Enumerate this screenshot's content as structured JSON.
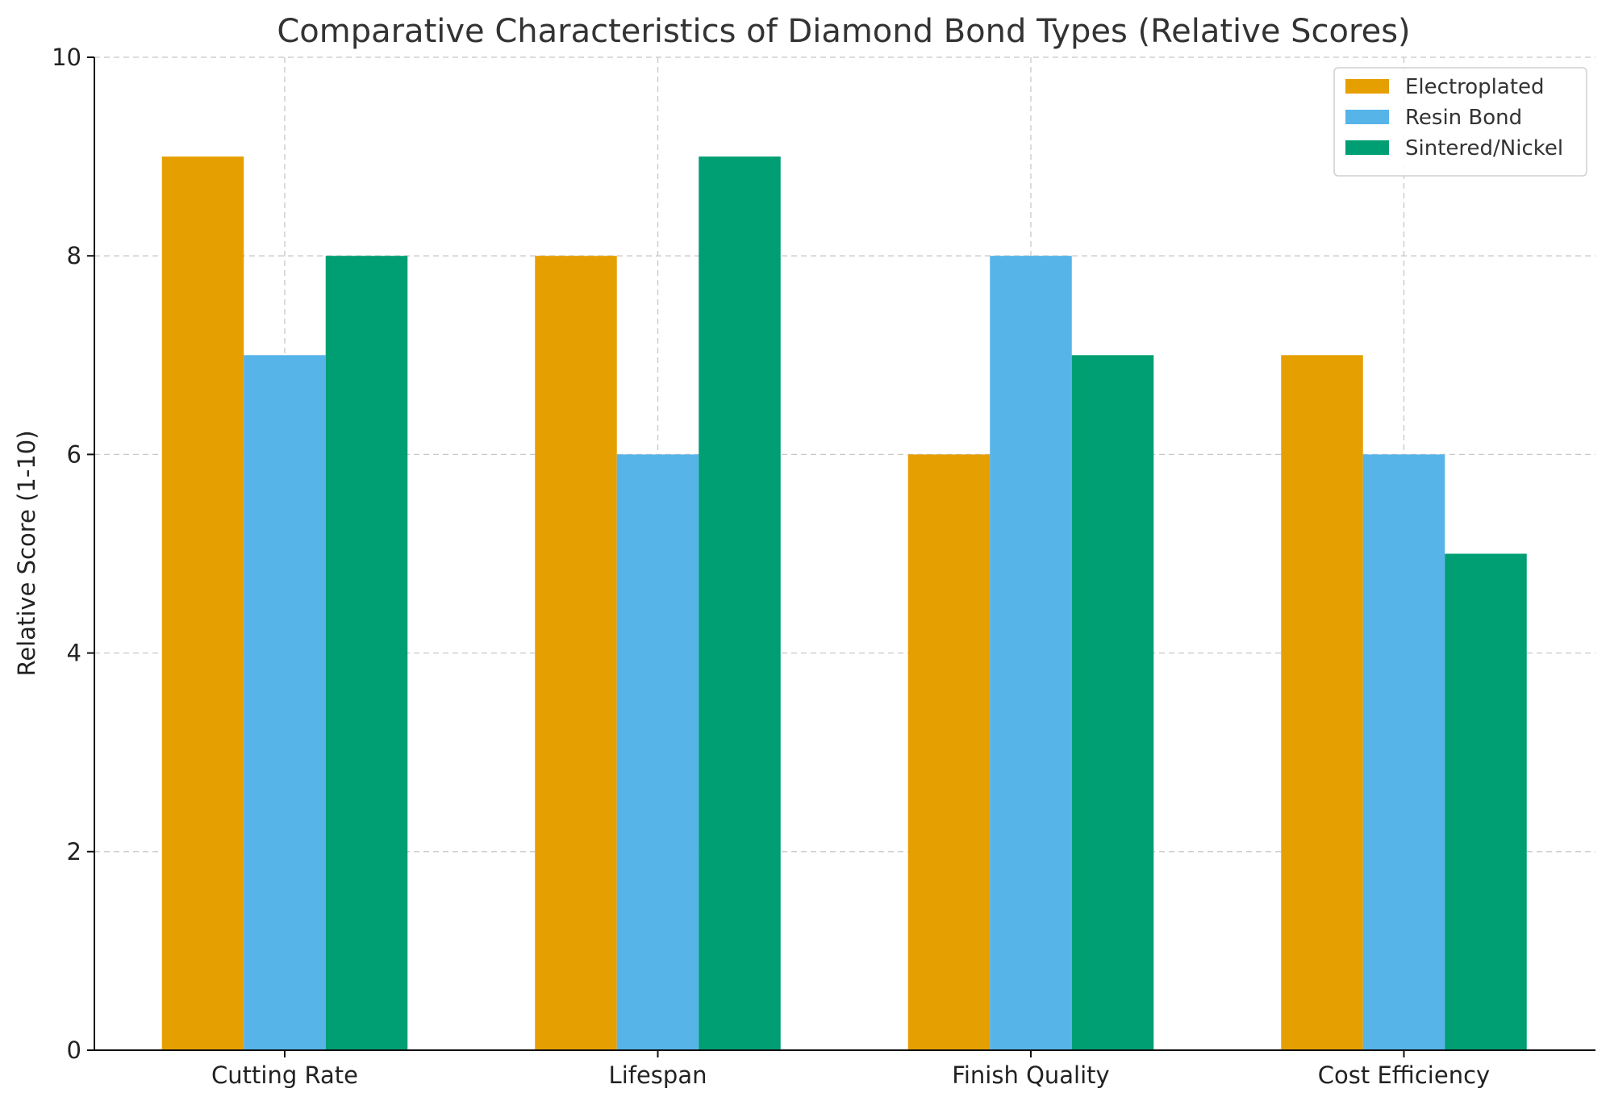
{
  "chart_data": {
    "type": "bar",
    "title": "Comparative Characteristics of Diamond Bond Types (Relative Scores)",
    "xlabel": "",
    "ylabel": "Relative Score (1-10)",
    "ylim": [
      0,
      10
    ],
    "yticks": [
      0,
      2,
      4,
      6,
      8,
      10
    ],
    "categories": [
      "Cutting Rate",
      "Lifespan",
      "Finish Quality",
      "Cost Efficiency"
    ],
    "series": [
      {
        "name": "Electroplated",
        "color": "#E69F00",
        "values": [
          9,
          8,
          6,
          7
        ]
      },
      {
        "name": "Resin Bond",
        "color": "#56B4E9",
        "values": [
          7,
          6,
          8,
          6
        ]
      },
      {
        "name": "Sintered/Nickel",
        "color": "#009E73",
        "values": [
          8,
          9,
          7,
          5
        ]
      }
    ],
    "grid": true,
    "legend_position": "top-right"
  }
}
